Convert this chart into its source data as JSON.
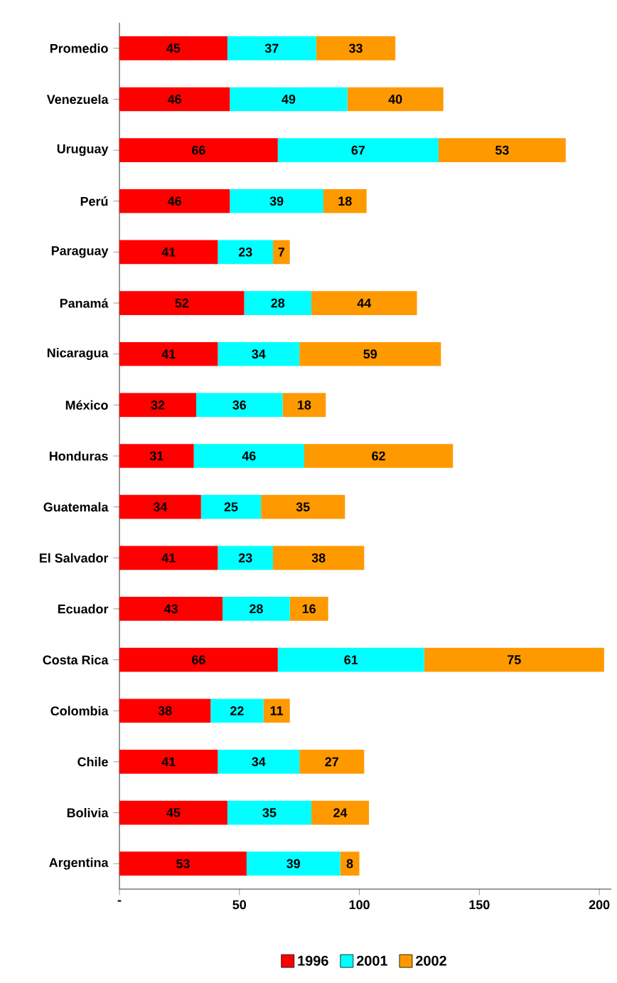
{
  "chart_data": {
    "type": "bar",
    "orientation": "horizontal",
    "stacked": true,
    "data_labels": true,
    "legend": "bottom",
    "grid": false,
    "categories": [
      "Promedio",
      "Venezuela",
      "Uruguay",
      "Perú",
      "Paraguay",
      "Panamá",
      "Nicaragua",
      "México",
      "Honduras",
      "Guatemala",
      "El Salvador",
      "Ecuador",
      "Costa Rica",
      "Colombia",
      "Chile",
      "Bolivia",
      "Argentina"
    ],
    "xlim": [
      0,
      205
    ],
    "xticks": [
      {
        "value": 0,
        "label": "-"
      },
      50,
      100,
      150,
      200
    ],
    "series": [
      {
        "name": "1996",
        "color": "#ff0000",
        "values": [
          45,
          46,
          66,
          46,
          41,
          52,
          41,
          32,
          31,
          34,
          41,
          43,
          66,
          38,
          41,
          45,
          53
        ]
      },
      {
        "name": "2001",
        "color": "#00ffff",
        "values": [
          37,
          49,
          67,
          39,
          23,
          28,
          34,
          36,
          46,
          25,
          23,
          28,
          61,
          22,
          34,
          35,
          39
        ]
      },
      {
        "name": "2002",
        "color": "#ff9900",
        "values": [
          33,
          40,
          53,
          18,
          7,
          44,
          59,
          18,
          62,
          35,
          38,
          16,
          75,
          11,
          27,
          24,
          8
        ]
      }
    ]
  }
}
